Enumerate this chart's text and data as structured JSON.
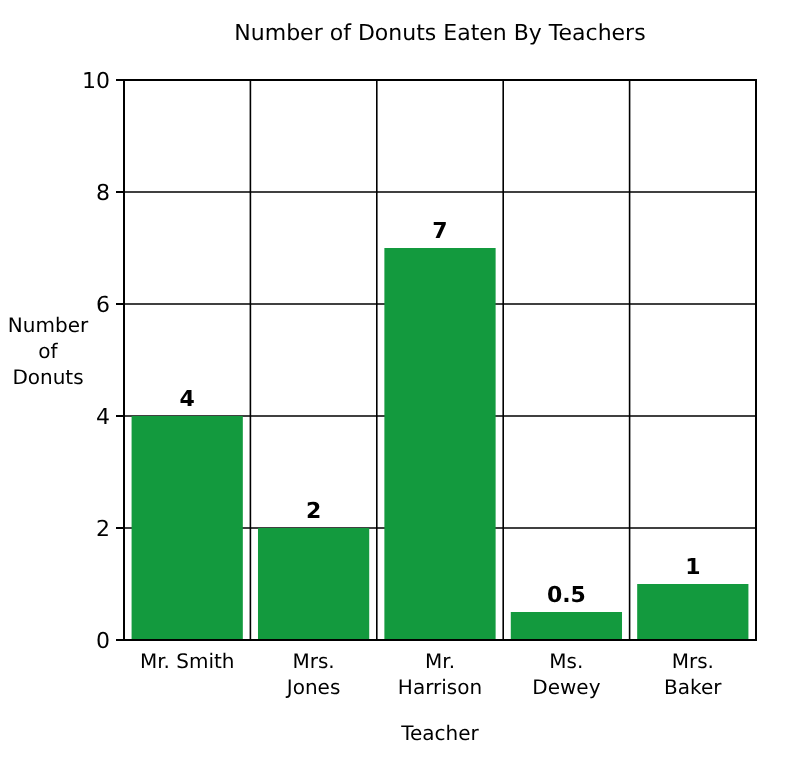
{
  "chart_data": {
    "type": "bar",
    "title": "Number of Donuts Eaten By Teachers",
    "xlabel": "Teacher",
    "ylabel": "Number\nof\nDonuts",
    "categories": [
      "Mr. Smith",
      "Mrs.\nJones",
      "Mr.\nHarrison",
      "Ms.\nDewey",
      "Mrs.\nBaker"
    ],
    "values": [
      4,
      2,
      7,
      0.5,
      1
    ],
    "color": "#139a3e",
    "ylim": [
      0,
      10
    ],
    "yticks": [
      0,
      2,
      4,
      6,
      8,
      10
    ],
    "grid": true,
    "data_labels": true
  }
}
